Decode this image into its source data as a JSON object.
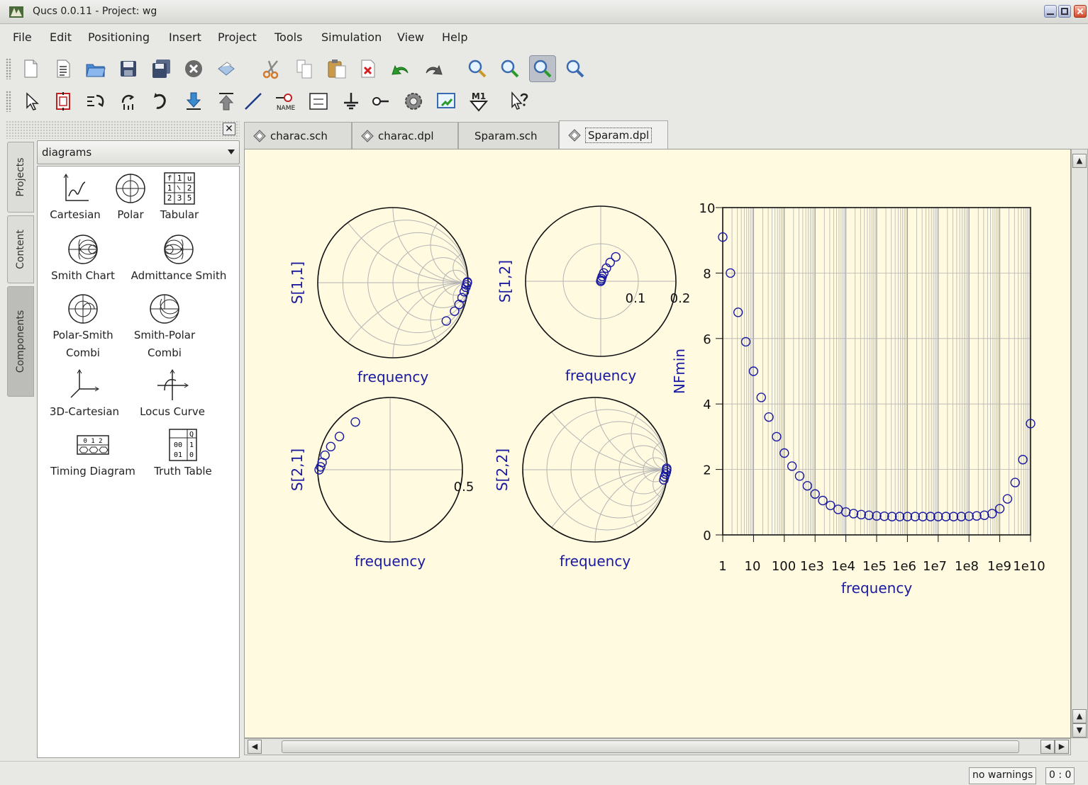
{
  "window": {
    "title": "Qucs 0.0.11 - Project: wg",
    "controls": [
      "minimize",
      "maximize",
      "close"
    ]
  },
  "menubar": {
    "items": [
      "File",
      "Edit",
      "Positioning",
      "Insert",
      "Project",
      "Tools",
      "Simulation",
      "View",
      "Help"
    ]
  },
  "toolbar1": {
    "icons": [
      "new-document-icon",
      "new-text-icon",
      "open-folder-icon",
      "save-icon",
      "save-all-icon",
      "close-document-icon",
      "print-icon",
      "cut-icon",
      "copy-icon",
      "paste-icon",
      "delete-icon",
      "undo-icon",
      "redo-icon",
      "view-all-icon",
      "view-1to1-icon",
      "zoom-in-icon",
      "zoom-out-icon"
    ],
    "pressed": "zoom-in-icon"
  },
  "toolbar2": {
    "icons": [
      "select-icon",
      "edit-component-icon",
      "mirror-x-icon",
      "mirror-y-icon",
      "rotate-icon",
      "go-into-icon",
      "pop-out-icon",
      "wire-icon",
      "label-icon",
      "equation-icon",
      "ground-icon",
      "port-icon",
      "simulate-icon",
      "display-dpl-icon",
      "marker-icon",
      "whats-this-icon"
    ],
    "label_text": "NAME",
    "marker_text": "M1"
  },
  "sidebar": {
    "close_label": "✕",
    "tabs": [
      "Projects",
      "Content",
      "Components"
    ],
    "active_tab": "Components",
    "category": "diagrams",
    "items": [
      {
        "label": "Cartesian",
        "icon": "cartesian-diagram-icon"
      },
      {
        "label": "Polar",
        "icon": "polar-diagram-icon"
      },
      {
        "label": "Tabular",
        "icon": "tabular-diagram-icon"
      },
      {
        "label": "Smith Chart",
        "icon": "smith-chart-icon"
      },
      {
        "label": "Admittance Smith",
        "icon": "admittance-smith-icon"
      },
      {
        "label": "Polar-Smith",
        "label2": "Combi",
        "icon": "polar-smith-icon"
      },
      {
        "label": "Smith-Polar",
        "label2": "Combi",
        "icon": "smith-polar-icon"
      },
      {
        "label": "3D-Cartesian",
        "icon": "cartesian-3d-icon"
      },
      {
        "label": "Locus Curve",
        "icon": "locus-curve-icon"
      },
      {
        "label": "Timing Diagram",
        "icon": "timing-diagram-icon"
      },
      {
        "label": "Truth Table",
        "icon": "truth-table-icon"
      }
    ],
    "tabular_icon_text": [
      "f",
      "1",
      "u",
      "1",
      "2",
      "2",
      "3",
      "5"
    ],
    "timing_icon_text": [
      "0 1 2"
    ],
    "truth_icon_text": [
      "Q",
      "00",
      "1",
      "01",
      "0"
    ]
  },
  "doc_tabs": [
    {
      "label": "charac.sch",
      "has_icon": true
    },
    {
      "label": "charac.dpl",
      "has_icon": true
    },
    {
      "label": "Sparam.sch",
      "has_icon": false
    },
    {
      "label": "Sparam.dpl",
      "has_icon": true
    }
  ],
  "active_doc_tab": "Sparam.dpl",
  "colors": {
    "canvas_bg": "#fffae0",
    "axis_label": "#1a1aa0",
    "marker": "#1a1aa0",
    "grid": "#b4b4b4"
  },
  "chart_data": [
    {
      "type": "scatter",
      "subtype": "smith",
      "ylabel": "S[1,1]",
      "xlabel": "frequency",
      "points_re_im": [
        [
          0.99,
          0.01
        ],
        [
          0.99,
          0.0
        ],
        [
          0.98,
          -0.03
        ],
        [
          0.97,
          -0.06
        ],
        [
          0.95,
          -0.12
        ],
        [
          0.92,
          -0.2
        ],
        [
          0.88,
          -0.29
        ],
        [
          0.82,
          -0.38
        ],
        [
          0.71,
          -0.51
        ]
      ]
    },
    {
      "type": "scatter",
      "subtype": "polar",
      "ylabel": "S[1,2]",
      "xlabel": "frequency",
      "r_max": 0.2,
      "tick_labels": [
        "0.1",
        "0.2"
      ],
      "points_re_im": [
        [
          0.0,
          0.0
        ],
        [
          0.001,
          0.003
        ],
        [
          0.002,
          0.007
        ],
        [
          0.004,
          0.013
        ],
        [
          0.008,
          0.022
        ],
        [
          0.015,
          0.035
        ],
        [
          0.025,
          0.05
        ],
        [
          0.04,
          0.065
        ]
      ]
    },
    {
      "type": "scatter",
      "subtype": "polar",
      "ylabel": "S[2,1]",
      "xlabel": "frequency",
      "r_max": 0.5,
      "tick_labels": [
        "0.5"
      ],
      "points_re_im": [
        [
          -0.49,
          0.0
        ],
        [
          -0.48,
          0.02
        ],
        [
          -0.47,
          0.05
        ],
        [
          -0.45,
          0.1
        ],
        [
          -0.41,
          0.16
        ],
        [
          -0.35,
          0.23
        ],
        [
          -0.24,
          0.33
        ]
      ]
    },
    {
      "type": "scatter",
      "subtype": "smith",
      "ylabel": "S[2,2]",
      "xlabel": "frequency",
      "points_re_im": [
        [
          0.99,
          0.02
        ],
        [
          0.99,
          0.0
        ],
        [
          0.985,
          -0.03
        ],
        [
          0.975,
          -0.06
        ],
        [
          0.96,
          -0.1
        ],
        [
          0.95,
          -0.14
        ]
      ]
    },
    {
      "type": "scatter",
      "xscale": "log",
      "xlabel": "frequency",
      "ylabel": "NFmin",
      "xlim": [
        1,
        10000000000
      ],
      "ylim": [
        0,
        10
      ],
      "x_tick_labels": [
        "1",
        "10",
        "100",
        "1e3",
        "1e4",
        "1e5",
        "1e6",
        "1e7",
        "1e8",
        "1e9",
        "1e10"
      ],
      "y_tick_labels": [
        "0",
        "2",
        "4",
        "6",
        "8",
        "10"
      ],
      "grid": true,
      "x": [
        1,
        1.78,
        3.16,
        5.62,
        10,
        17.8,
        31.6,
        56.2,
        100,
        178,
        316,
        562,
        1000,
        1780,
        3160,
        5620,
        10000,
        17800,
        31600,
        56200,
        100000,
        178000,
        316000,
        562000,
        1000000,
        1780000,
        3160000,
        5620000,
        10000000,
        17800000,
        31600000,
        56200000,
        100000000,
        178000000,
        316000000,
        562000000,
        1000000000,
        1780000000,
        3160000000,
        5620000000,
        10000000000
      ],
      "y": [
        9.1,
        8.0,
        6.8,
        5.9,
        5.0,
        4.2,
        3.6,
        3.0,
        2.5,
        2.1,
        1.8,
        1.5,
        1.25,
        1.05,
        0.9,
        0.78,
        0.7,
        0.65,
        0.62,
        0.6,
        0.58,
        0.57,
        0.56,
        0.56,
        0.56,
        0.56,
        0.56,
        0.56,
        0.56,
        0.56,
        0.56,
        0.56,
        0.57,
        0.58,
        0.6,
        0.65,
        0.8,
        1.1,
        1.6,
        2.3,
        3.4
      ]
    }
  ],
  "statusbar": {
    "warnings": "no warnings",
    "position": "0 : 0"
  }
}
